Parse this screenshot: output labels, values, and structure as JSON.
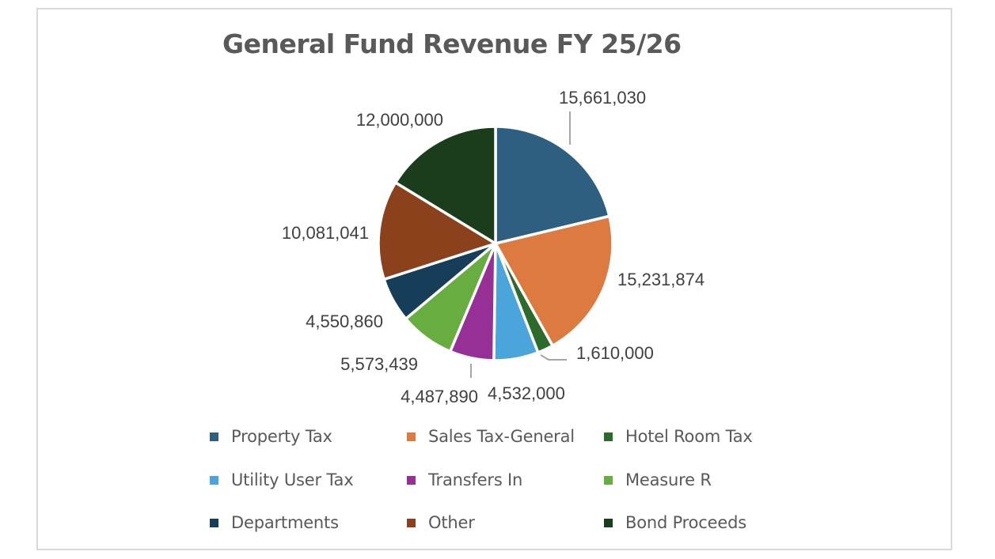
{
  "chart_data": {
    "type": "pie",
    "title": "General Fund Revenue FY 25/26",
    "slices": [
      {
        "name": "Property Tax",
        "value": 15661030,
        "label": "15,661,030",
        "color": "#2e5f80"
      },
      {
        "name": "Sales Tax-General",
        "value": 15231874,
        "label": "15,231,874",
        "color": "#dd7a40"
      },
      {
        "name": "Hotel Room Tax",
        "value": 1610000,
        "label": "1,610,000",
        "color": "#2c6b2c"
      },
      {
        "name": "Utility User Tax",
        "value": 4532000,
        "label": "4,532,000",
        "color": "#4aa5db"
      },
      {
        "name": "Transfers In",
        "value": 4487890,
        "label": "4,487,890",
        "color": "#963096"
      },
      {
        "name": "Measure R",
        "value": 5573439,
        "label": "5,573,439",
        "color": "#67ad3f"
      },
      {
        "name": "Departments",
        "value": 4550860,
        "label": "4,550,860",
        "color": "#163e58"
      },
      {
        "name": "Other",
        "value": 10081041,
        "label": "10,081,041",
        "color": "#8b421c"
      },
      {
        "name": "Bond Proceeds",
        "value": 12000000,
        "label": "12,000,000",
        "color": "#1c3d1c"
      }
    ],
    "legend_position": "bottom"
  }
}
